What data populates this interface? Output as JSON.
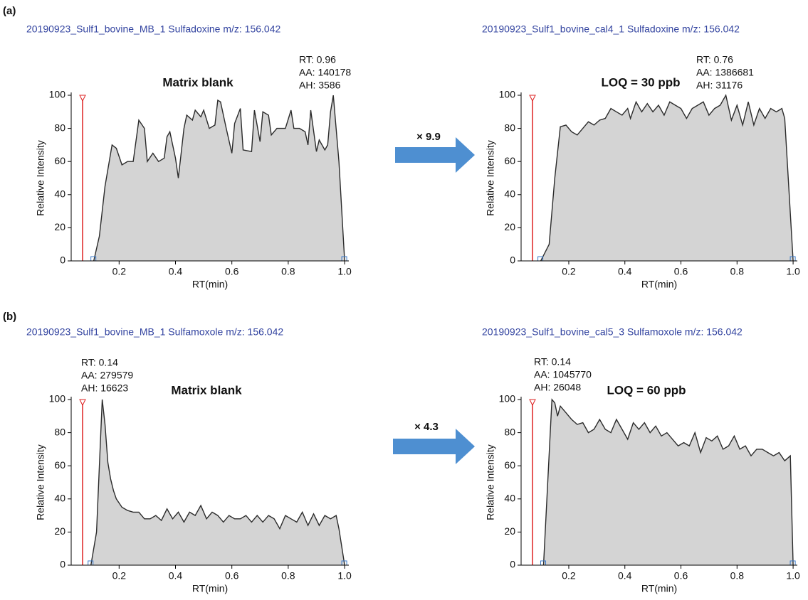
{
  "panel_labels": [
    "(a)",
    "(b)"
  ],
  "factors": [
    "× 9.9",
    "× 4.3"
  ],
  "chart_data": [
    {
      "type": "area",
      "title": "20190923_Sulf1_bovine_MB_1   Sulfadoxine   m/z: 156.042",
      "annotation": "Matrix blank",
      "peak_label": [
        "RT: 0.96",
        "AA: 140178",
        "AH: 3586"
      ],
      "x_label": "RT(min)",
      "y_label": "Relative Intensity",
      "fill": "#d4d4d4",
      "color": "#2b2b2b",
      "xlim": [
        0.03,
        1.015
      ],
      "ylim": [
        0,
        100
      ],
      "xticks": [
        0.2,
        0.4,
        0.6,
        0.8,
        {
          "value": 1,
          "label": "1.0"
        }
      ],
      "yticks": [
        0,
        20,
        40,
        60,
        80,
        100
      ],
      "x": [
        0.11,
        0.13,
        0.15,
        0.175,
        0.19,
        0.21,
        0.23,
        0.25,
        0.27,
        0.29,
        0.3,
        0.32,
        0.34,
        0.36,
        0.37,
        0.38,
        0.4,
        0.41,
        0.43,
        0.44,
        0.46,
        0.47,
        0.49,
        0.5,
        0.52,
        0.54,
        0.55,
        0.56,
        0.58,
        0.6,
        0.61,
        0.63,
        0.64,
        0.67,
        0.68,
        0.7,
        0.71,
        0.73,
        0.74,
        0.76,
        0.78,
        0.79,
        0.81,
        0.82,
        0.84,
        0.86,
        0.87,
        0.88,
        0.9,
        0.91,
        0.93,
        0.94,
        0.95,
        0.96,
        0.98,
        1.0
      ],
      "values": [
        0,
        15,
        45,
        70,
        68,
        58,
        60,
        60,
        85,
        80,
        60,
        65,
        60,
        62,
        75,
        78,
        62,
        50,
        80,
        88,
        85,
        91,
        87,
        91,
        80,
        82,
        97,
        96,
        80,
        65,
        83,
        92,
        67,
        66,
        91,
        72,
        90,
        88,
        76,
        80,
        80,
        80,
        91,
        80,
        80,
        78,
        70,
        91,
        66,
        73,
        67,
        70,
        90,
        100,
        60,
        0
      ]
    },
    {
      "type": "area",
      "title": "20190923_Sulf1_bovine_cal4_1   Sulfadoxine   m/z: 156.042",
      "annotation": "LOQ = 30 ppb",
      "peak_label": [
        "RT: 0.76",
        "AA: 1386681",
        "AH: 31176"
      ],
      "x_label": "RT(min)",
      "y_label": "Relative Intensity",
      "fill": "#d4d4d4",
      "color": "#2b2b2b",
      "xlim": [
        0.03,
        1.015
      ],
      "ylim": [
        0,
        100
      ],
      "xticks": [
        0.2,
        0.4,
        0.6,
        0.8,
        {
          "value": 1,
          "label": "1.0"
        }
      ],
      "yticks": [
        0,
        20,
        40,
        60,
        80,
        100
      ],
      "x": [
        0.1,
        0.13,
        0.15,
        0.17,
        0.19,
        0.21,
        0.23,
        0.25,
        0.27,
        0.29,
        0.31,
        0.33,
        0.35,
        0.37,
        0.39,
        0.41,
        0.42,
        0.44,
        0.46,
        0.48,
        0.5,
        0.52,
        0.54,
        0.56,
        0.58,
        0.6,
        0.62,
        0.64,
        0.66,
        0.68,
        0.7,
        0.72,
        0.74,
        0.76,
        0.78,
        0.8,
        0.82,
        0.84,
        0.86,
        0.88,
        0.9,
        0.92,
        0.94,
        0.96,
        0.97,
        1.0
      ],
      "values": [
        0,
        10,
        50,
        81,
        82,
        78,
        76,
        80,
        84,
        82,
        85,
        86,
        92,
        90,
        88,
        92,
        86,
        96,
        90,
        95,
        90,
        94,
        88,
        96,
        94,
        92,
        86,
        92,
        94,
        96,
        88,
        92,
        94,
        100,
        85,
        94,
        82,
        96,
        82,
        92,
        86,
        92,
        90,
        92,
        86,
        0
      ]
    },
    {
      "type": "area",
      "title": "20190923_Sulf1_bovine_MB_1   Sulfamoxole   m/z: 156.042",
      "annotation": "Matrix blank",
      "peak_label": [
        "RT: 0.14",
        "AA: 279579",
        "AH: 16623"
      ],
      "x_label": "RT(min)",
      "y_label": "Relative Intensity",
      "fill": "#d4d4d4",
      "color": "#2b2b2b",
      "xlim": [
        0.03,
        1.015
      ],
      "ylim": [
        0,
        100
      ],
      "xticks": [
        0.2,
        0.4,
        0.6,
        0.8,
        {
          "value": 1,
          "label": "1.0"
        }
      ],
      "yticks": [
        0,
        20,
        40,
        60,
        80,
        100
      ],
      "x": [
        0.1,
        0.12,
        0.14,
        0.15,
        0.16,
        0.17,
        0.18,
        0.19,
        0.21,
        0.23,
        0.25,
        0.27,
        0.29,
        0.31,
        0.33,
        0.35,
        0.37,
        0.39,
        0.41,
        0.43,
        0.45,
        0.47,
        0.49,
        0.51,
        0.53,
        0.55,
        0.57,
        0.59,
        0.61,
        0.63,
        0.65,
        0.67,
        0.69,
        0.71,
        0.73,
        0.75,
        0.77,
        0.79,
        0.81,
        0.83,
        0.85,
        0.87,
        0.89,
        0.91,
        0.93,
        0.95,
        0.97,
        0.98,
        1.0
      ],
      "values": [
        0,
        20,
        100,
        85,
        62,
        52,
        45,
        40,
        35,
        33,
        32,
        32,
        28,
        28,
        30,
        27,
        34,
        28,
        32,
        26,
        32,
        30,
        36,
        28,
        32,
        30,
        26,
        30,
        28,
        28,
        30,
        26,
        30,
        26,
        30,
        28,
        22,
        30,
        28,
        26,
        32,
        24,
        31,
        24,
        30,
        28,
        30,
        22,
        0
      ]
    },
    {
      "type": "area",
      "title": "20190923_Sulf1_bovine_cal5_3   Sulfamoxole   m/z: 156.042",
      "annotation": "LOQ = 60 ppb",
      "peak_label": [
        "RT: 0.14",
        "AA: 1045770",
        "AH: 26048"
      ],
      "x_label": "RT(min)",
      "y_label": "Relative Intensity",
      "fill": "#d4d4d4",
      "color": "#2b2b2b",
      "xlim": [
        0.03,
        1.015
      ],
      "ylim": [
        0,
        100
      ],
      "xticks": [
        0.2,
        0.4,
        0.6,
        0.8,
        {
          "value": 1,
          "label": "1.0"
        }
      ],
      "yticks": [
        0,
        20,
        40,
        60,
        80,
        100
      ],
      "x": [
        0.11,
        0.14,
        0.15,
        0.16,
        0.17,
        0.19,
        0.21,
        0.23,
        0.25,
        0.27,
        0.29,
        0.31,
        0.33,
        0.35,
        0.37,
        0.39,
        0.41,
        0.43,
        0.45,
        0.47,
        0.49,
        0.51,
        0.53,
        0.55,
        0.57,
        0.59,
        0.61,
        0.63,
        0.65,
        0.67,
        0.69,
        0.71,
        0.73,
        0.75,
        0.77,
        0.79,
        0.81,
        0.83,
        0.85,
        0.87,
        0.89,
        0.91,
        0.93,
        0.95,
        0.97,
        0.99,
        1.0
      ],
      "values": [
        0,
        100,
        98,
        90,
        96,
        92,
        88,
        85,
        86,
        80,
        82,
        88,
        82,
        80,
        88,
        82,
        76,
        86,
        82,
        86,
        80,
        84,
        78,
        80,
        76,
        72,
        74,
        72,
        80,
        68,
        77,
        75,
        78,
        70,
        72,
        78,
        70,
        72,
        66,
        70,
        70,
        68,
        66,
        68,
        63,
        66,
        0
      ]
    }
  ]
}
